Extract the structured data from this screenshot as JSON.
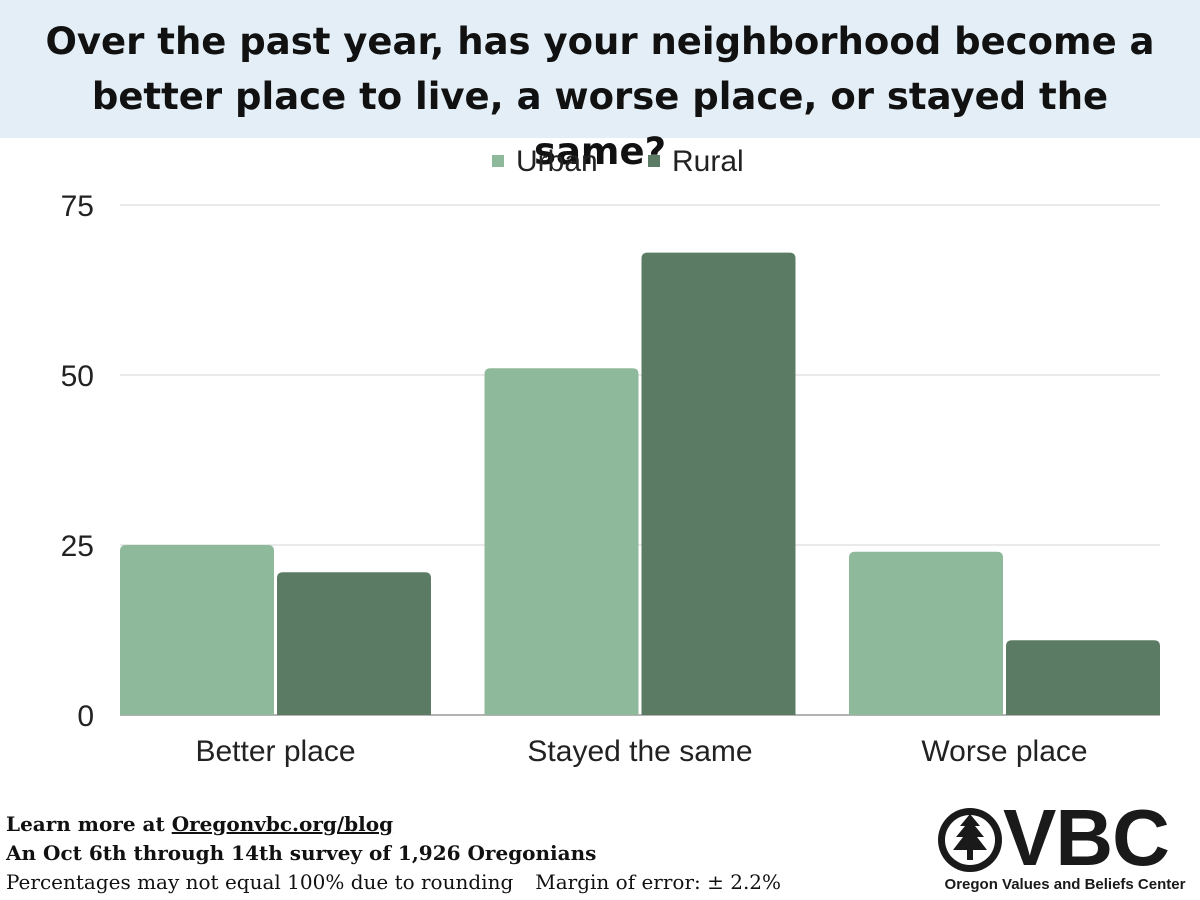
{
  "header": {
    "title_line1": "Over the past year, has your neighborhood become a",
    "title_line2": "better place to live, a worse place, or stayed the same?"
  },
  "colors": {
    "urban": "#8fb99b",
    "rural": "#5c7b64",
    "title_band": "#e3eef6",
    "gridline": "#d6d6d6"
  },
  "chart_data": {
    "type": "bar",
    "categories": [
      "Better place",
      "Stayed the same",
      "Worse place"
    ],
    "series": [
      {
        "name": "Urban",
        "values": [
          25,
          51,
          24
        ]
      },
      {
        "name": "Rural",
        "values": [
          21,
          68,
          11
        ]
      }
    ],
    "yticks": [
      "0",
      "25",
      "50",
      "75"
    ],
    "ylim": [
      0,
      75
    ],
    "grid": true,
    "legend_position": "top-center"
  },
  "footer": {
    "learn_prefix": "Learn more at ",
    "learn_link": "Oregonvbc.org/blog",
    "survey_line": "An Oct 6th through 14th survey of 1,926 Oregonians",
    "rounding_note": "Percentages may not equal  100% due to rounding",
    "margin_of_error": "Margin of error: ± 2.2%"
  },
  "logo": {
    "letters": "VBC",
    "org_name": "Oregon Values and Beliefs Center",
    "icon": "pine-tree-icon"
  }
}
